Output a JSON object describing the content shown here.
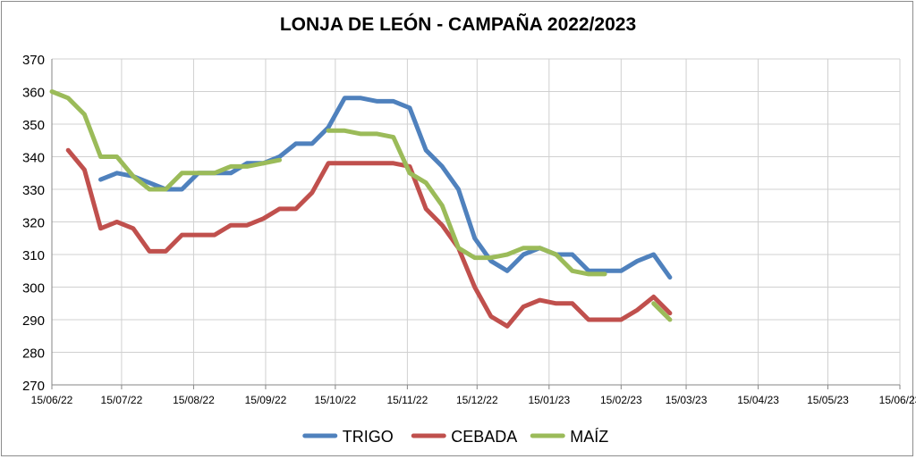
{
  "chart_data": {
    "type": "line",
    "title": "LONJA DE LEÓN - CAMPAÑA 2022/2023",
    "xlabel": "",
    "ylabel": "",
    "ylim": [
      270,
      370
    ],
    "yticks": [
      270,
      280,
      290,
      300,
      310,
      320,
      330,
      340,
      350,
      360,
      370
    ],
    "xlim": [
      "2022-06-15",
      "2023-06-15"
    ],
    "xticks": [
      {
        "date": "2022-06-15",
        "label": "15/06/22"
      },
      {
        "date": "2022-07-15",
        "label": "15/07/22"
      },
      {
        "date": "2022-08-15",
        "label": "15/08/22"
      },
      {
        "date": "2022-09-15",
        "label": "15/09/22"
      },
      {
        "date": "2022-10-15",
        "label": "15/10/22"
      },
      {
        "date": "2022-11-15",
        "label": "15/11/22"
      },
      {
        "date": "2022-12-15",
        "label": "15/12/22"
      },
      {
        "date": "2023-01-15",
        "label": "15/01/23"
      },
      {
        "date": "2023-02-15",
        "label": "15/02/23"
      },
      {
        "date": "2023-03-15",
        "label": "15/03/23"
      },
      {
        "date": "2023-04-15",
        "label": "15/04/23"
      },
      {
        "date": "2023-05-15",
        "label": "15/05/23"
      },
      {
        "date": "2023-06-15",
        "label": "15/06/23"
      }
    ],
    "grid": true,
    "legend_position": "bottom",
    "series": [
      {
        "name": "TRIGO",
        "color": "#4f81bd",
        "segments": [
          [
            [
              "2022-07-06",
              333
            ],
            [
              "2022-07-13",
              335
            ],
            [
              "2022-07-20",
              334
            ],
            [
              "2022-07-27",
              332
            ],
            [
              "2022-08-03",
              330
            ],
            [
              "2022-08-10",
              330
            ],
            [
              "2022-08-17",
              335
            ],
            [
              "2022-08-24",
              335
            ],
            [
              "2022-08-31",
              335
            ],
            [
              "2022-09-07",
              338
            ],
            [
              "2022-09-14",
              338
            ],
            [
              "2022-09-21",
              340
            ],
            [
              "2022-09-28",
              344
            ],
            [
              "2022-10-05",
              344
            ],
            [
              "2022-10-12",
              349
            ],
            [
              "2022-10-19",
              358
            ],
            [
              "2022-10-26",
              358
            ],
            [
              "2022-11-02",
              357
            ],
            [
              "2022-11-09",
              357
            ],
            [
              "2022-11-16",
              355
            ],
            [
              "2022-11-23",
              342
            ],
            [
              "2022-11-30",
              337
            ],
            [
              "2022-12-07",
              330
            ],
            [
              "2022-12-14",
              315
            ],
            [
              "2022-12-21",
              308
            ],
            [
              "2022-12-28",
              305
            ],
            [
              "2023-01-04",
              310
            ],
            [
              "2023-01-11",
              312
            ],
            [
              "2023-01-18",
              310
            ],
            [
              "2023-01-25",
              310
            ],
            [
              "2023-02-01",
              305
            ],
            [
              "2023-02-08",
              305
            ],
            [
              "2023-02-15",
              305
            ],
            [
              "2023-02-22",
              308
            ],
            [
              "2023-03-01",
              310
            ],
            [
              "2023-03-08",
              303
            ]
          ]
        ]
      },
      {
        "name": "CEBADA",
        "color": "#c0504d",
        "segments": [
          [
            [
              "2022-06-22",
              342
            ],
            [
              "2022-06-29",
              336
            ],
            [
              "2022-07-06",
              318
            ],
            [
              "2022-07-13",
              320
            ],
            [
              "2022-07-20",
              318
            ],
            [
              "2022-07-27",
              311
            ],
            [
              "2022-08-03",
              311
            ],
            [
              "2022-08-10",
              316
            ],
            [
              "2022-08-17",
              316
            ],
            [
              "2022-08-24",
              316
            ],
            [
              "2022-08-31",
              319
            ],
            [
              "2022-09-07",
              319
            ],
            [
              "2022-09-14",
              321
            ],
            [
              "2022-09-21",
              324
            ],
            [
              "2022-09-28",
              324
            ],
            [
              "2022-10-05",
              329
            ],
            [
              "2022-10-12",
              338
            ],
            [
              "2022-10-19",
              338
            ],
            [
              "2022-10-26",
              338
            ],
            [
              "2022-11-02",
              338
            ],
            [
              "2022-11-09",
              338
            ],
            [
              "2022-11-16",
              337
            ],
            [
              "2022-11-23",
              324
            ],
            [
              "2022-11-30",
              319
            ],
            [
              "2022-12-07",
              312
            ],
            [
              "2022-12-14",
              300
            ],
            [
              "2022-12-21",
              291
            ],
            [
              "2022-12-28",
              288
            ],
            [
              "2023-01-04",
              294
            ],
            [
              "2023-01-11",
              296
            ],
            [
              "2023-01-18",
              295
            ],
            [
              "2023-01-25",
              295
            ],
            [
              "2023-02-01",
              290
            ],
            [
              "2023-02-08",
              290
            ],
            [
              "2023-02-15",
              290
            ],
            [
              "2023-02-22",
              293
            ],
            [
              "2023-03-01",
              297
            ],
            [
              "2023-03-08",
              292
            ]
          ]
        ]
      },
      {
        "name": "MAÍZ",
        "color": "#9bbb59",
        "segments": [
          [
            [
              "2022-06-15",
              360
            ],
            [
              "2022-06-22",
              358
            ],
            [
              "2022-06-29",
              353
            ],
            [
              "2022-07-06",
              340
            ],
            [
              "2022-07-13",
              340
            ],
            [
              "2022-07-20",
              334
            ],
            [
              "2022-07-27",
              330
            ],
            [
              "2022-08-03",
              330
            ],
            [
              "2022-08-10",
              335
            ],
            [
              "2022-08-17",
              335
            ],
            [
              "2022-08-24",
              335
            ],
            [
              "2022-08-31",
              337
            ],
            [
              "2022-09-07",
              337
            ],
            [
              "2022-09-14",
              338
            ],
            [
              "2022-09-21",
              339
            ]
          ],
          [
            [
              "2022-10-12",
              348
            ],
            [
              "2022-10-19",
              348
            ],
            [
              "2022-10-26",
              347
            ],
            [
              "2022-11-02",
              347
            ],
            [
              "2022-11-09",
              346
            ],
            [
              "2022-11-16",
              335
            ],
            [
              "2022-11-23",
              332
            ],
            [
              "2022-11-30",
              325
            ],
            [
              "2022-12-07",
              312
            ],
            [
              "2022-12-14",
              309
            ],
            [
              "2022-12-21",
              309
            ],
            [
              "2022-12-28",
              310
            ],
            [
              "2023-01-04",
              312
            ],
            [
              "2023-01-11",
              312
            ],
            [
              "2023-01-18",
              310
            ],
            [
              "2023-01-25",
              305
            ],
            [
              "2023-02-01",
              304
            ],
            [
              "2023-02-08",
              304
            ]
          ],
          [
            [
              "2023-03-01",
              295
            ],
            [
              "2023-03-08",
              290
            ]
          ]
        ]
      }
    ]
  }
}
